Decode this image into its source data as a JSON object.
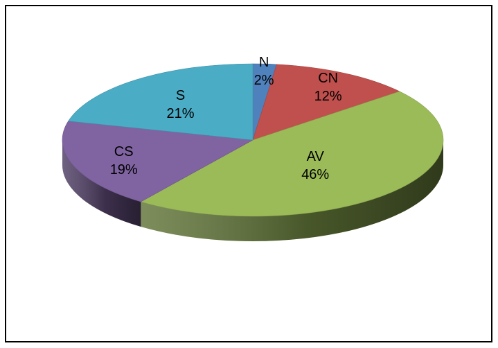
{
  "chart_data": {
    "type": "pie",
    "style": "3d",
    "title": "",
    "slices": [
      {
        "name": "N",
        "value": 2,
        "label": "2%",
        "color": "#4f81bd"
      },
      {
        "name": "CN",
        "value": 12,
        "label": "12%",
        "color": "#c0504d"
      },
      {
        "name": "AV",
        "value": 46,
        "label": "46%",
        "color": "#9bbb59"
      },
      {
        "name": "CS",
        "value": 19,
        "label": "19%",
        "color": "#8064a2"
      },
      {
        "name": "S",
        "value": 21,
        "label": "21%",
        "color": "#4bacc6"
      }
    ],
    "legend": "none",
    "data_labels": "category and percentage inside slices"
  }
}
